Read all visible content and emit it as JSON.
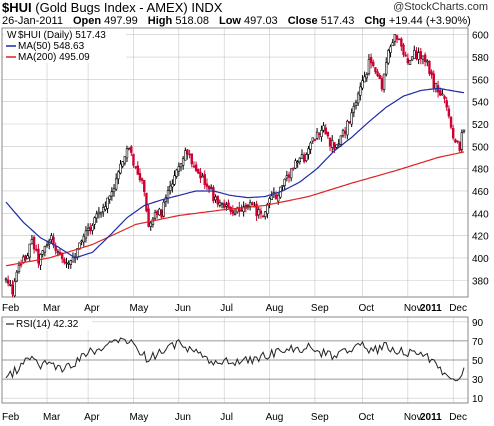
{
  "header": {
    "symbol": "$HUI",
    "name": "(Gold Bugs Index - AMEX)",
    "exchange": "INDX",
    "date": "26-Jan-2011",
    "open_label": "Open",
    "open": "497.99",
    "high_label": "High",
    "high": "518.08",
    "low_label": "Low",
    "low": "497.03",
    "close_label": "Close",
    "close": "517.43",
    "chg_label": "Chg",
    "chg": "+19.44 (+3.90%)",
    "watermark": "@StockCharts.com"
  },
  "legend": {
    "price": "$HUI (Daily) 517.43",
    "ma50": "MA(50) 548.63",
    "ma200": "MA(200) 495.09"
  },
  "rsi_label": "RSI(14) 42.32",
  "colors": {
    "up": "#000000",
    "down": "#cc0033",
    "ma50": "#1f2aa8",
    "ma200": "#e02020",
    "grid": "#c8c8c8",
    "rsi": "#222222"
  },
  "chart_data": [
    {
      "type": "candlestick",
      "title": "$HUI (Gold Bugs Index - AMEX) INDX",
      "x_tick_labels": [
        "Feb",
        "Mar",
        "Apr",
        "May",
        "Jun",
        "Jul",
        "Aug",
        "Sep",
        "Oct",
        "Nov",
        "Dec",
        "2011"
      ],
      "y_tick_labels": [
        380,
        400,
        420,
        440,
        460,
        480,
        500,
        520,
        540,
        560,
        580,
        600
      ],
      "ylim": [
        365,
        606
      ],
      "grid": true,
      "close_keypoints": [
        [
          0,
          380
        ],
        [
          3,
          370
        ],
        [
          6,
          392
        ],
        [
          9,
          400
        ],
        [
          12,
          415
        ],
        [
          15,
          398
        ],
        [
          18,
          408
        ],
        [
          21,
          418
        ],
        [
          24,
          404
        ],
        [
          27,
          399
        ],
        [
          30,
          395
        ],
        [
          33,
          405
        ],
        [
          36,
          420
        ],
        [
          39,
          428
        ],
        [
          42,
          438
        ],
        [
          45,
          446
        ],
        [
          48,
          455
        ],
        [
          51,
          470
        ],
        [
          54,
          487
        ],
        [
          57,
          500
        ],
        [
          60,
          478
        ],
        [
          63,
          470
        ],
        [
          66,
          430
        ],
        [
          69,
          442
        ],
        [
          72,
          440
        ],
        [
          75,
          458
        ],
        [
          78,
          470
        ],
        [
          81,
          488
        ],
        [
          84,
          496
        ],
        [
          87,
          478
        ],
        [
          90,
          470
        ],
        [
          93,
          468
        ],
        [
          96,
          455
        ],
        [
          99,
          450
        ],
        [
          102,
          446
        ],
        [
          105,
          438
        ],
        [
          108,
          442
        ],
        [
          111,
          448
        ],
        [
          114,
          445
        ],
        [
          117,
          440
        ],
        [
          120,
          440
        ],
        [
          123,
          456
        ],
        [
          126,
          456
        ],
        [
          129,
          470
        ],
        [
          132,
          478
        ],
        [
          135,
          486
        ],
        [
          138,
          490
        ],
        [
          141,
          502
        ],
        [
          144,
          512
        ],
        [
          147,
          516
        ],
        [
          150,
          503
        ],
        [
          153,
          500
        ],
        [
          156,
          512
        ],
        [
          159,
          522
        ],
        [
          162,
          540
        ],
        [
          165,
          555
        ],
        [
          168,
          575
        ],
        [
          171,
          568
        ],
        [
          174,
          555
        ],
        [
          177,
          585
        ],
        [
          180,
          602
        ],
        [
          183,
          588
        ],
        [
          186,
          574
        ],
        [
          189,
          582
        ],
        [
          192,
          579
        ],
        [
          195,
          575
        ],
        [
          198,
          555
        ],
        [
          201,
          548
        ],
        [
          204,
          535
        ],
        [
          207,
          508
        ],
        [
          210,
          500
        ],
        [
          212,
          517
        ]
      ],
      "ma50_keypoints": [
        [
          0,
          450
        ],
        [
          8,
          432
        ],
        [
          16,
          418
        ],
        [
          24,
          410
        ],
        [
          32,
          400
        ],
        [
          40,
          405
        ],
        [
          48,
          420
        ],
        [
          56,
          436
        ],
        [
          64,
          447
        ],
        [
          72,
          452
        ],
        [
          80,
          456
        ],
        [
          88,
          460
        ],
        [
          96,
          460
        ],
        [
          104,
          456
        ],
        [
          112,
          454
        ],
        [
          120,
          455
        ],
        [
          128,
          460
        ],
        [
          136,
          468
        ],
        [
          144,
          480
        ],
        [
          152,
          496
        ],
        [
          160,
          508
        ],
        [
          168,
          522
        ],
        [
          176,
          535
        ],
        [
          184,
          545
        ],
        [
          192,
          550
        ],
        [
          200,
          552
        ],
        [
          206,
          550
        ],
        [
          212,
          548
        ]
      ],
      "ma200_keypoints": [
        [
          0,
          393
        ],
        [
          20,
          400
        ],
        [
          40,
          412
        ],
        [
          60,
          430
        ],
        [
          80,
          438
        ],
        [
          100,
          443
        ],
        [
          120,
          447
        ],
        [
          140,
          455
        ],
        [
          160,
          467
        ],
        [
          180,
          478
        ],
        [
          200,
          490
        ],
        [
          212,
          495
        ]
      ]
    },
    {
      "type": "line",
      "title": "RSI(14) 42.32",
      "y_tick_labels": [
        10,
        30,
        50,
        70,
        90
      ],
      "ylim": [
        5,
        95
      ],
      "reference_lines": [
        30,
        50,
        70
      ],
      "last_value": 42.32,
      "keypoints": [
        [
          0,
          32
        ],
        [
          5,
          40
        ],
        [
          10,
          52
        ],
        [
          15,
          45
        ],
        [
          20,
          48
        ],
        [
          25,
          42
        ],
        [
          30,
          44
        ],
        [
          35,
          52
        ],
        [
          40,
          60
        ],
        [
          45,
          62
        ],
        [
          50,
          68
        ],
        [
          55,
          70
        ],
        [
          60,
          65
        ],
        [
          65,
          52
        ],
        [
          70,
          56
        ],
        [
          75,
          62
        ],
        [
          80,
          68
        ],
        [
          85,
          60
        ],
        [
          90,
          54
        ],
        [
          95,
          48
        ],
        [
          100,
          50
        ],
        [
          105,
          45
        ],
        [
          110,
          52
        ],
        [
          115,
          50
        ],
        [
          120,
          55
        ],
        [
          125,
          58
        ],
        [
          130,
          62
        ],
        [
          135,
          60
        ],
        [
          140,
          65
        ],
        [
          145,
          58
        ],
        [
          150,
          55
        ],
        [
          155,
          58
        ],
        [
          160,
          62
        ],
        [
          165,
          64
        ],
        [
          170,
          60
        ],
        [
          175,
          64
        ],
        [
          180,
          62
        ],
        [
          185,
          56
        ],
        [
          190,
          58
        ],
        [
          195,
          52
        ],
        [
          200,
          42
        ],
        [
          205,
          34
        ],
        [
          209,
          32
        ],
        [
          212,
          42
        ]
      ]
    }
  ]
}
